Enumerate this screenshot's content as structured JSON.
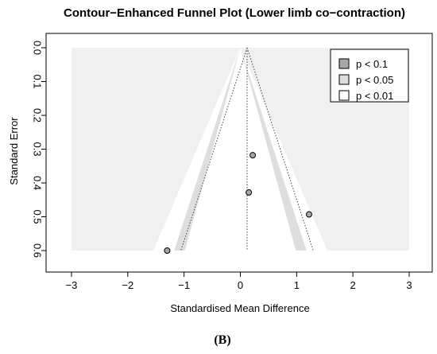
{
  "chart_data": {
    "type": "scatter",
    "title": "Contour−Enhanced Funnel Plot (Lower limb co−contraction)",
    "xlabel": "Standardised Mean Difference",
    "ylabel": "Standard Error",
    "xlim": [
      -3,
      3
    ],
    "ylim": [
      0,
      0.6
    ],
    "y_reversed": true,
    "x_ticks": [
      -3,
      -2,
      -1,
      0,
      1,
      2,
      3
    ],
    "x_tick_labels": [
      "−3",
      "−2",
      "−1",
      "0",
      "1",
      "2",
      "3"
    ],
    "y_ticks": [
      0,
      0.1,
      0.2,
      0.3,
      0.4,
      0.5,
      0.6
    ],
    "y_tick_labels": [
      "0.0",
      "0.1",
      "0.2",
      "0.3",
      "0.4",
      "0.5",
      "0.6"
    ],
    "pooled_effect": 0.12,
    "contours": [
      {
        "label": "p < 0.1",
        "z": 1.645,
        "color": "#c8c8c8"
      },
      {
        "label": "p < 0.05",
        "z": 1.96,
        "color": "#dedede"
      },
      {
        "label": "p < 0.01",
        "z": 2.576,
        "color": "#ffffff"
      }
    ],
    "outer_region_color": "#f0f0f0",
    "points": [
      {
        "x": 0.22,
        "y": 0.318
      },
      {
        "x": 0.15,
        "y": 0.428
      },
      {
        "x": 1.22,
        "y": 0.493
      },
      {
        "x": -1.3,
        "y": 0.6
      }
    ],
    "legend_position": "top-right",
    "grid": false
  },
  "caption": "(B)"
}
